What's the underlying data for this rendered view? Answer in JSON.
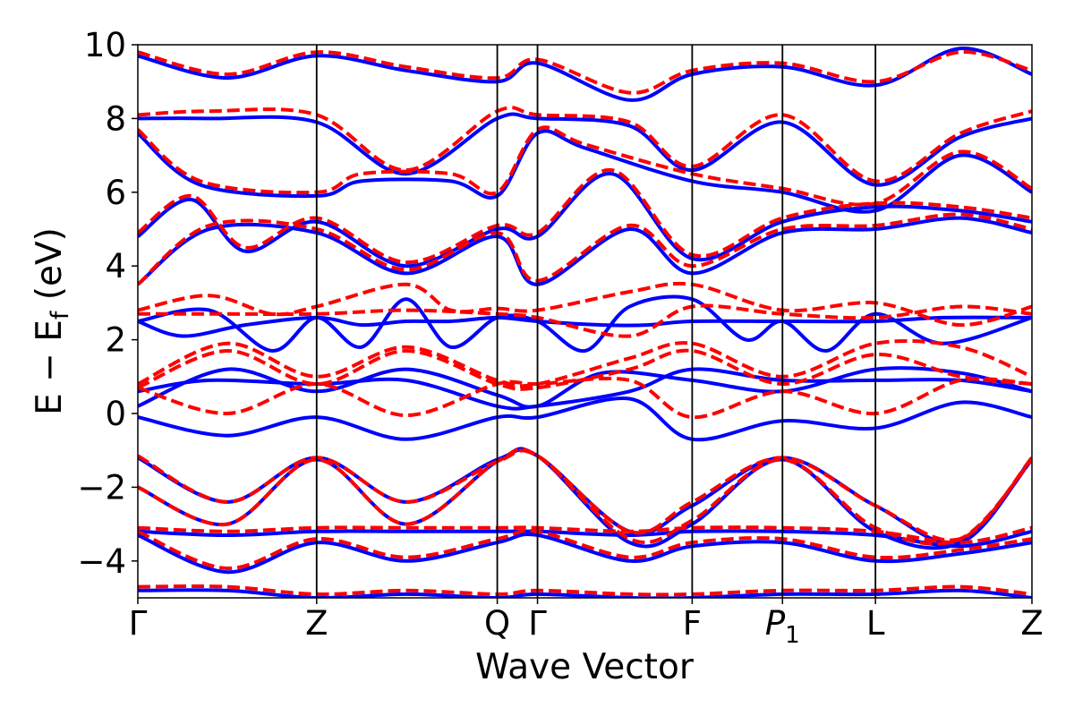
{
  "chart_data": {
    "type": "line",
    "title": "",
    "xlabel": "Wave Vector",
    "ylabel_main": "E − E",
    "ylabel_sub": "f",
    "ylabel_unit": " (eV)",
    "ylim": [
      -5,
      10
    ],
    "yticks": [
      -4,
      -2,
      0,
      2,
      4,
      6,
      8,
      10
    ],
    "ytick_labels": [
      "−4",
      "−2",
      "0",
      "2",
      "4",
      "6",
      "8",
      "10"
    ],
    "grid": false,
    "legend": "none",
    "xlim": [
      0,
      1
    ],
    "kpoints": [
      {
        "label": "Γ",
        "x": 0.0
      },
      {
        "label": "Z",
        "x": 0.2
      },
      {
        "label": "Q",
        "x": 0.402
      },
      {
        "label": "Γ",
        "x": 0.447
      },
      {
        "label": "F",
        "x": 0.62
      },
      {
        "label": "P",
        "sub": "1",
        "italic": true,
        "x": 0.721
      },
      {
        "label": "L",
        "x": 0.825
      },
      {
        "label": "Z",
        "x": 1.0
      }
    ],
    "styles": {
      "solid": {
        "color": "#0000ff",
        "dash": "none"
      },
      "dashed": {
        "color": "#ff0000",
        "dash": "14 6"
      }
    },
    "series": [
      {
        "style": "solid",
        "x": [
          0,
          0.08,
          0.2,
          0.3,
          0.402,
          0.447,
          0.55,
          0.62,
          0.721,
          0.825,
          0.92,
          1.0
        ],
        "y": [
          3.5,
          5.0,
          4.9,
          3.8,
          4.8,
          3.5,
          5.0,
          3.8,
          4.9,
          5.0,
          5.3,
          4.9
        ]
      },
      {
        "style": "solid",
        "x": [
          0,
          0.06,
          0.12,
          0.2,
          0.3,
          0.402,
          0.447,
          0.53,
          0.62,
          0.721,
          0.825,
          0.92,
          1.0
        ],
        "y": [
          4.8,
          5.8,
          4.4,
          5.2,
          4.0,
          5.0,
          4.8,
          6.5,
          4.2,
          5.2,
          5.6,
          5.5,
          5.2
        ]
      },
      {
        "style": "solid",
        "x": [
          0,
          0.07,
          0.2,
          0.25,
          0.35,
          0.402,
          0.447,
          0.5,
          0.62,
          0.721,
          0.825,
          0.92,
          1.0
        ],
        "y": [
          7.6,
          6.2,
          5.9,
          6.3,
          6.3,
          5.9,
          7.6,
          7.2,
          6.3,
          6.0,
          5.5,
          7.0,
          6.0
        ]
      },
      {
        "style": "solid",
        "x": [
          0,
          0.08,
          0.2,
          0.3,
          0.402,
          0.447,
          0.55,
          0.62,
          0.721,
          0.825,
          0.92,
          1.0
        ],
        "y": [
          8.0,
          8.0,
          7.9,
          6.5,
          8.0,
          8.0,
          7.8,
          6.6,
          7.9,
          6.2,
          7.5,
          8.0
        ]
      },
      {
        "style": "solid",
        "x": [
          0,
          0.1,
          0.2,
          0.3,
          0.402,
          0.447,
          0.55,
          0.62,
          0.721,
          0.825,
          0.92,
          1.0
        ],
        "y": [
          9.7,
          9.1,
          9.7,
          9.3,
          9.0,
          9.5,
          8.5,
          9.2,
          9.4,
          8.9,
          9.9,
          9.2
        ]
      },
      {
        "style": "solid",
        "x": [
          0,
          0.05,
          0.12,
          0.2,
          0.25,
          0.3,
          0.35,
          0.402,
          0.447,
          0.52,
          0.57,
          0.62,
          0.721,
          0.825,
          0.9,
          1.0
        ],
        "y": [
          2.5,
          2.1,
          2.4,
          2.6,
          2.4,
          2.5,
          2.5,
          2.6,
          2.5,
          2.4,
          2.4,
          2.5,
          2.5,
          2.5,
          2.6,
          2.6
        ]
      },
      {
        "style": "solid",
        "x": [
          0,
          0.08,
          0.15,
          0.2,
          0.25,
          0.3,
          0.35,
          0.402,
          0.447,
          0.5,
          0.55,
          0.62,
          0.68,
          0.721,
          0.77,
          0.825,
          0.9,
          1.0
        ],
        "y": [
          2.5,
          2.8,
          1.7,
          2.6,
          1.8,
          3.1,
          1.8,
          2.6,
          2.5,
          1.7,
          2.9,
          3.1,
          2.0,
          2.5,
          1.7,
          2.7,
          1.9,
          2.6
        ]
      },
      {
        "style": "solid",
        "x": [
          0,
          0.1,
          0.2,
          0.3,
          0.402,
          0.447,
          0.52,
          0.62,
          0.721,
          0.825,
          0.92,
          1.0
        ],
        "y": [
          0.2,
          1.2,
          0.6,
          1.2,
          0.5,
          0.2,
          1.1,
          0.9,
          0.6,
          1.2,
          1.1,
          0.6
        ]
      },
      {
        "style": "solid",
        "x": [
          0,
          0.08,
          0.2,
          0.3,
          0.402,
          0.447,
          0.55,
          0.62,
          0.721,
          0.825,
          0.92,
          1.0
        ],
        "y": [
          0.6,
          0.9,
          0.8,
          0.9,
          0.2,
          0.2,
          0.6,
          1.2,
          0.9,
          0.9,
          0.9,
          0.6
        ]
      },
      {
        "style": "solid",
        "x": [
          0,
          0.1,
          0.2,
          0.3,
          0.402,
          0.447,
          0.55,
          0.62,
          0.721,
          0.825,
          0.92,
          1.0
        ],
        "y": [
          -0.1,
          -0.6,
          -0.1,
          -0.7,
          -0.1,
          -0.1,
          0.4,
          -0.7,
          -0.2,
          -0.4,
          0.3,
          -0.1
        ]
      },
      {
        "style": "solid",
        "x": [
          0,
          0.1,
          0.2,
          0.3,
          0.402,
          0.447,
          0.55,
          0.62,
          0.721,
          0.825,
          0.92,
          1.0
        ],
        "y": [
          -1.2,
          -2.4,
          -1.2,
          -2.4,
          -1.25,
          -1.15,
          -3.2,
          -2.5,
          -1.2,
          -2.5,
          -3.5,
          -1.2
        ]
      },
      {
        "style": "solid",
        "x": [
          0,
          0.1,
          0.2,
          0.3,
          0.402,
          0.447,
          0.55,
          0.62,
          0.721,
          0.825,
          0.92,
          1.0
        ],
        "y": [
          -2.0,
          -3.0,
          -1.25,
          -3.0,
          -1.3,
          -1.15,
          -3.5,
          -3.0,
          -1.25,
          -3.2,
          -3.5,
          -1.25
        ]
      },
      {
        "style": "solid",
        "x": [
          0,
          0.1,
          0.2,
          0.3,
          0.402,
          0.447,
          0.55,
          0.62,
          0.721,
          0.825,
          0.92,
          1.0
        ],
        "y": [
          -3.2,
          -3.3,
          -3.2,
          -3.2,
          -3.2,
          -3.2,
          -3.3,
          -3.2,
          -3.2,
          -3.3,
          -3.6,
          -3.2
        ]
      },
      {
        "style": "solid",
        "x": [
          0,
          0.1,
          0.2,
          0.3,
          0.402,
          0.447,
          0.55,
          0.62,
          0.721,
          0.825,
          0.92,
          1.0
        ],
        "y": [
          -3.3,
          -4.3,
          -3.5,
          -4.0,
          -3.5,
          -3.3,
          -4.0,
          -3.6,
          -3.5,
          -4.0,
          -3.8,
          -3.5
        ]
      },
      {
        "style": "solid",
        "x": [
          0,
          0.1,
          0.2,
          0.3,
          0.402,
          0.447,
          0.55,
          0.62,
          0.721,
          0.825,
          0.92,
          1.0
        ],
        "y": [
          -4.8,
          -4.8,
          -5.0,
          -4.9,
          -5.0,
          -4.9,
          -5.0,
          -5.0,
          -4.9,
          -4.9,
          -4.8,
          -5.0
        ]
      },
      {
        "style": "dashed",
        "x": [
          0,
          0.08,
          0.2,
          0.3,
          0.402,
          0.447,
          0.55,
          0.62,
          0.721,
          0.825,
          0.92,
          1.0
        ],
        "y": [
          3.5,
          5.1,
          5.0,
          3.9,
          4.9,
          3.6,
          5.1,
          4.0,
          5.0,
          5.1,
          5.4,
          5.0
        ]
      },
      {
        "style": "dashed",
        "x": [
          0,
          0.06,
          0.12,
          0.2,
          0.3,
          0.402,
          0.447,
          0.53,
          0.62,
          0.721,
          0.825,
          0.92,
          1.0
        ],
        "y": [
          4.9,
          5.9,
          4.5,
          5.3,
          4.1,
          5.1,
          4.9,
          6.6,
          4.3,
          5.3,
          5.7,
          5.6,
          5.3
        ]
      },
      {
        "style": "dashed",
        "x": [
          0,
          0.07,
          0.2,
          0.25,
          0.35,
          0.402,
          0.447,
          0.5,
          0.62,
          0.721,
          0.825,
          0.92,
          1.0
        ],
        "y": [
          7.7,
          6.3,
          6.0,
          6.5,
          6.5,
          6.0,
          7.7,
          7.3,
          6.5,
          6.1,
          5.7,
          7.1,
          6.1
        ]
      },
      {
        "style": "dashed",
        "x": [
          0,
          0.08,
          0.2,
          0.3,
          0.402,
          0.447,
          0.55,
          0.62,
          0.721,
          0.825,
          0.92,
          1.0
        ],
        "y": [
          8.1,
          8.2,
          8.1,
          6.6,
          8.2,
          8.1,
          7.9,
          6.7,
          8.1,
          6.3,
          7.6,
          8.2
        ]
      },
      {
        "style": "dashed",
        "x": [
          0,
          0.1,
          0.2,
          0.3,
          0.402,
          0.447,
          0.55,
          0.62,
          0.721,
          0.825,
          0.92,
          1.0
        ],
        "y": [
          9.8,
          9.2,
          9.8,
          9.4,
          9.1,
          9.6,
          8.7,
          9.3,
          9.5,
          9.0,
          9.8,
          9.3
        ]
      },
      {
        "style": "dashed",
        "x": [
          0,
          0.08,
          0.15,
          0.2,
          0.3,
          0.35,
          0.402,
          0.447,
          0.55,
          0.62,
          0.721,
          0.825,
          0.92,
          1.0
        ],
        "y": [
          2.8,
          3.2,
          2.7,
          2.9,
          3.5,
          2.8,
          2.85,
          2.8,
          3.3,
          3.5,
          2.8,
          3.0,
          2.4,
          2.9
        ]
      },
      {
        "style": "dashed",
        "x": [
          0,
          0.1,
          0.2,
          0.3,
          0.402,
          0.447,
          0.55,
          0.62,
          0.721,
          0.825,
          0.92,
          1.0
        ],
        "y": [
          2.7,
          2.7,
          2.7,
          2.8,
          2.7,
          2.6,
          2.1,
          2.9,
          2.7,
          2.6,
          2.9,
          2.7
        ]
      },
      {
        "style": "dashed",
        "x": [
          0,
          0.1,
          0.2,
          0.3,
          0.402,
          0.447,
          0.55,
          0.62,
          0.721,
          0.825,
          0.92,
          1.0
        ],
        "y": [
          0.8,
          1.9,
          1.0,
          1.8,
          0.9,
          0.8,
          1.5,
          1.9,
          1.0,
          1.9,
          1.8,
          1.0
        ]
      },
      {
        "style": "dashed",
        "x": [
          0,
          0.1,
          0.2,
          0.3,
          0.402,
          0.447,
          0.55,
          0.62,
          0.721,
          0.825,
          0.92,
          1.0
        ],
        "y": [
          0.7,
          1.7,
          0.8,
          1.7,
          0.8,
          0.7,
          1.2,
          1.7,
          0.8,
          1.6,
          1.0,
          0.8
        ]
      },
      {
        "style": "dashed",
        "x": [
          0,
          0.1,
          0.2,
          0.3,
          0.402,
          0.447,
          0.55,
          0.62,
          0.721,
          0.825,
          0.92,
          1.0
        ],
        "y": [
          0.7,
          0.0,
          0.8,
          -0.05,
          0.8,
          0.8,
          0.9,
          -0.1,
          0.6,
          0.0,
          0.9,
          0.8
        ]
      },
      {
        "style": "dashed",
        "x": [
          0,
          0.1,
          0.2,
          0.3,
          0.402,
          0.447,
          0.55,
          0.62,
          0.721,
          0.825,
          0.92,
          1.0
        ],
        "y": [
          -1.15,
          -2.4,
          -1.2,
          -2.4,
          -1.3,
          -1.15,
          -3.2,
          -2.4,
          -1.2,
          -2.5,
          -3.4,
          -1.2
        ]
      },
      {
        "style": "dashed",
        "x": [
          0,
          0.1,
          0.2,
          0.3,
          0.402,
          0.447,
          0.55,
          0.62,
          0.721,
          0.825,
          0.92,
          1.0
        ],
        "y": [
          -2.0,
          -3.0,
          -1.25,
          -3.0,
          -1.3,
          -1.15,
          -3.4,
          -2.9,
          -1.25,
          -3.1,
          -3.4,
          -1.25
        ]
      },
      {
        "style": "dashed",
        "x": [
          0,
          0.1,
          0.2,
          0.3,
          0.402,
          0.447,
          0.55,
          0.62,
          0.721,
          0.825,
          0.92,
          1.0
        ],
        "y": [
          -3.1,
          -3.2,
          -3.1,
          -3.1,
          -3.1,
          -3.1,
          -3.2,
          -3.1,
          -3.1,
          -3.2,
          -3.5,
          -3.1
        ]
      },
      {
        "style": "dashed",
        "x": [
          0,
          0.1,
          0.2,
          0.3,
          0.402,
          0.447,
          0.55,
          0.62,
          0.721,
          0.825,
          0.92,
          1.0
        ],
        "y": [
          -3.2,
          -4.2,
          -3.4,
          -3.9,
          -3.4,
          -3.2,
          -3.9,
          -3.5,
          -3.4,
          -3.9,
          -3.7,
          -3.4
        ]
      },
      {
        "style": "dashed",
        "x": [
          0,
          0.1,
          0.2,
          0.3,
          0.402,
          0.447,
          0.55,
          0.62,
          0.721,
          0.825,
          0.92,
          1.0
        ],
        "y": [
          -4.7,
          -4.7,
          -4.9,
          -4.8,
          -4.9,
          -4.8,
          -4.9,
          -4.9,
          -4.8,
          -4.8,
          -4.7,
          -4.9
        ]
      }
    ]
  }
}
